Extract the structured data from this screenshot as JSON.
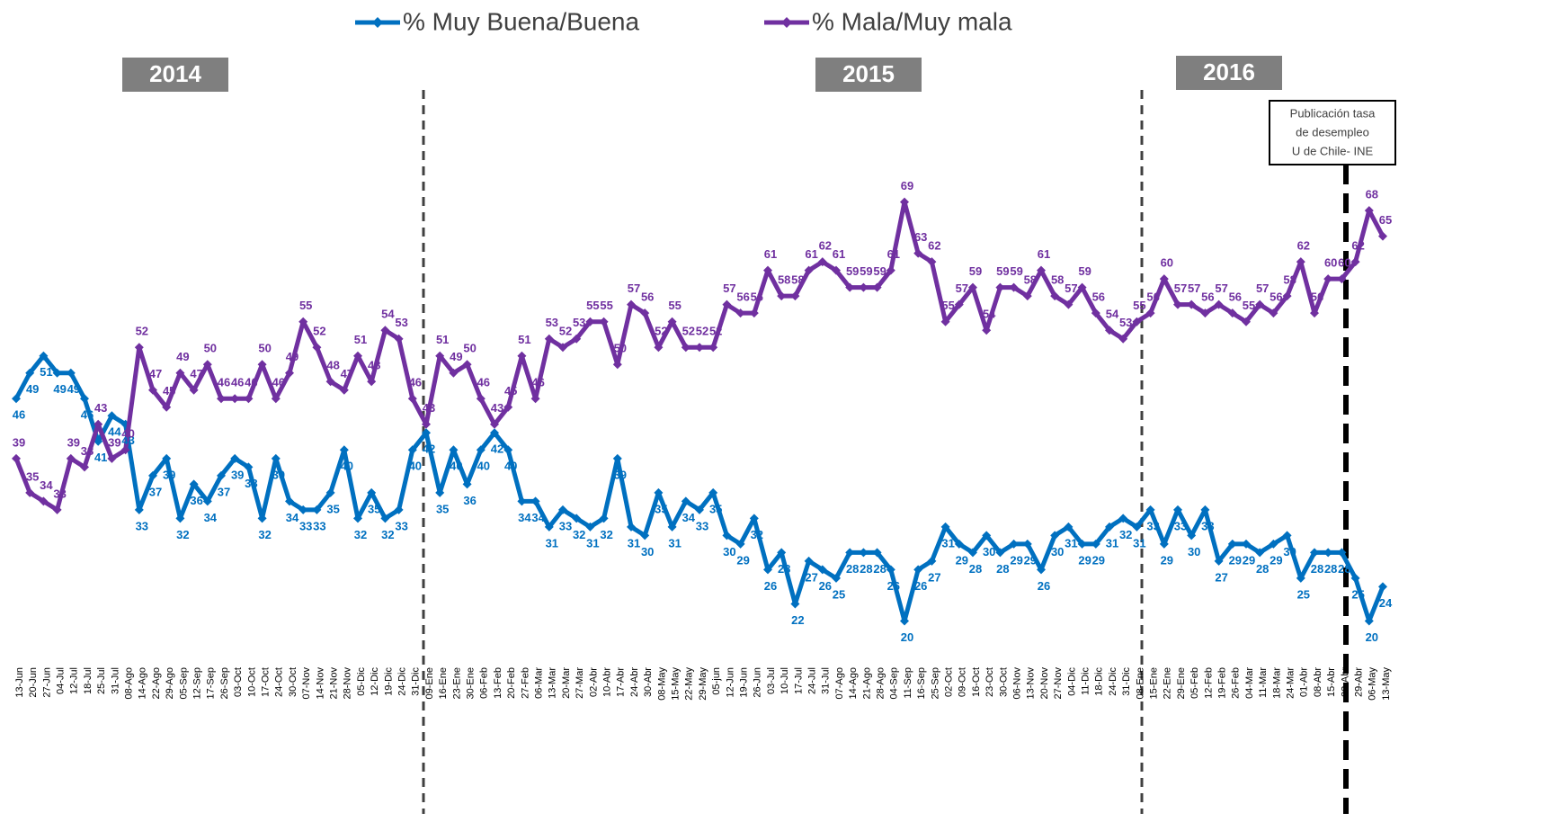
{
  "chart_data": {
    "type": "line",
    "categories": [
      "13-Jun",
      "20-Jun",
      "27-Jun",
      "04-Jul",
      "12-Jul",
      "18-Jul",
      "25-Jul",
      "31-Jul",
      "08-Ago",
      "14-Ago",
      "22-Ago",
      "29-Ago",
      "05-Sep",
      "12-Sep",
      "17-Sep",
      "26-Sep",
      "03-Oct",
      "10-Oct",
      "17-Oct",
      "24-Oct",
      "30-Oct",
      "07-Nov",
      "14-Nov",
      "21-Nov",
      "28-Nov",
      "05-Dic",
      "12-Dic",
      "19-Dic",
      "24-Dic",
      "31-Dic",
      "09-Ene",
      "16-Ene",
      "23-Ene",
      "30-Ene",
      "06-Feb",
      "13-Feb",
      "20-Feb",
      "27-Feb",
      "06-Mar",
      "13-Mar",
      "20-Mar",
      "27-Mar",
      "02-Abr",
      "10-Abr",
      "17-Abr",
      "24-Abr",
      "30-Abr",
      "08-May",
      "15-May",
      "22-May",
      "29-May",
      "05-jun",
      "12-Jun",
      "19-Jun",
      "26-Jun",
      "03-Jul",
      "10-Jul",
      "17-Jul",
      "24-Jul",
      "31-Jul",
      "07-Ago",
      "14-Ago",
      "21-Ago",
      "28-Ago",
      "04-Sep",
      "11-Sep",
      "16-Sep",
      "25-Sep",
      "02-Oct",
      "09-Oct",
      "16-Oct",
      "23-Oct",
      "30-Oct",
      "06-Nov",
      "13-Nov",
      "20-Nov",
      "27-Nov",
      "04-Dic",
      "11-Dic",
      "18-Dic",
      "24-Dic",
      "31-Dic",
      "08-Ene",
      "15-Ene",
      "22-Ene",
      "29-Ene",
      "05-Feb",
      "12-Feb",
      "19-Feb",
      "26-Feb",
      "04-Mar",
      "11-Mar",
      "18-Mar",
      "24-Mar",
      "01-Abr",
      "08-Abr",
      "15-Abr",
      "22-Abr",
      "29-Abr",
      "06-May",
      "13-May"
    ],
    "series": [
      {
        "name": "% Muy Buena/Buena",
        "color": "#0070c0",
        "values": [
          46,
          49,
          51,
          49,
          49,
          46,
          41,
          44,
          43,
          33,
          37,
          39,
          32,
          36,
          34,
          37,
          39,
          38,
          32,
          39,
          34,
          33,
          33,
          35,
          40,
          32,
          35,
          32,
          33,
          40,
          42,
          35,
          40,
          36,
          40,
          42,
          40,
          34,
          34,
          31,
          33,
          32,
          31,
          32,
          39,
          31,
          30,
          35,
          31,
          34,
          33,
          35,
          30,
          29,
          32,
          26,
          28,
          22,
          27,
          26,
          25,
          28,
          28,
          28,
          26,
          20,
          26,
          27,
          31,
          29,
          28,
          30,
          28,
          29,
          29,
          26,
          30,
          31,
          29,
          29,
          31,
          32,
          31,
          33,
          29,
          33,
          30,
          33,
          27,
          29,
          29,
          28,
          29,
          30,
          25,
          28,
          28,
          28,
          25,
          20,
          24
        ]
      },
      {
        "name": "% Mala/Muy mala",
        "color": "#7030a0",
        "values": [
          39,
          35,
          34,
          33,
          39,
          38,
          43,
          39,
          40,
          52,
          47,
          45,
          49,
          47,
          50,
          46,
          46,
          46,
          50,
          46,
          49,
          55,
          52,
          48,
          47,
          51,
          48,
          54,
          53,
          46,
          43,
          51,
          49,
          50,
          46,
          43,
          45,
          51,
          46,
          53,
          52,
          53,
          55,
          55,
          50,
          57,
          56,
          52,
          55,
          52,
          52,
          52,
          57,
          56,
          56,
          61,
          58,
          58,
          61,
          62,
          61,
          59,
          59,
          59,
          61,
          69,
          63,
          62,
          55,
          57,
          59,
          54,
          59,
          59,
          58,
          61,
          58,
          57,
          59,
          56,
          54,
          53,
          55,
          56,
          60,
          57,
          57,
          56,
          57,
          56,
          55,
          57,
          56,
          58,
          62,
          56,
          60,
          60,
          62,
          68,
          65
        ]
      }
    ],
    "ylim": [
      15,
      80
    ],
    "year_labels": [
      "2014",
      "2015",
      "2016"
    ],
    "annotation": [
      "Publicación tasa",
      "de desempleo",
      "U de Chile- INE"
    ]
  }
}
